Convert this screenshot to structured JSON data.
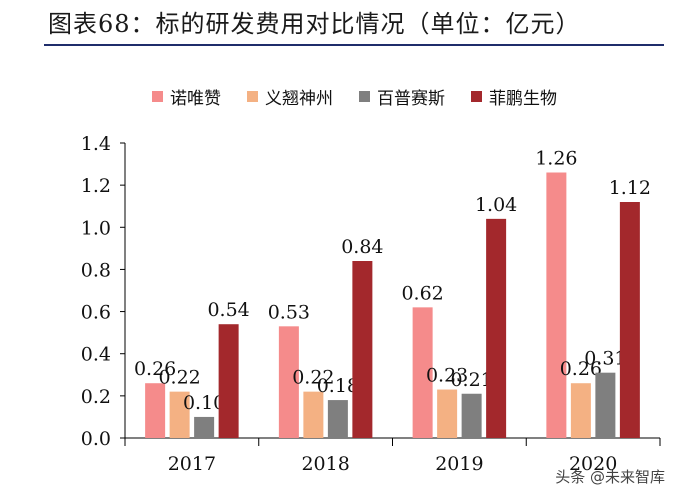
{
  "page": {
    "title": "图表68：标的研发费用对比情况（单位：亿元）",
    "watermark": "头条 @未来智库"
  },
  "chart_data": {
    "type": "bar",
    "title": "图表68：标的研发费用对比情况（单位：亿元）",
    "xlabel": "",
    "ylabel": "",
    "categories": [
      "2017",
      "2018",
      "2019",
      "2020"
    ],
    "ylim": [
      0,
      1.4
    ],
    "yticks": [
      "0.0",
      "0.2",
      "0.4",
      "0.6",
      "0.8",
      "1.0",
      "1.2",
      "1.4"
    ],
    "grid": false,
    "legend_position": "top",
    "series": [
      {
        "name": "诺唯赞",
        "color": "#f58b8b",
        "values": [
          0.26,
          0.53,
          0.62,
          1.26
        ],
        "labels": [
          "0.26",
          "0.53",
          "0.62",
          "1.26"
        ]
      },
      {
        "name": "义翘神州",
        "color": "#f4b183",
        "values": [
          0.22,
          0.22,
          0.23,
          0.26
        ],
        "labels": [
          "0.22",
          "0.22",
          "0.23",
          "0.26"
        ]
      },
      {
        "name": "百普赛斯",
        "color": "#7f7f7f",
        "values": [
          0.1,
          0.18,
          0.21,
          0.31
        ],
        "labels": [
          "0.10",
          "0.18",
          "0.21",
          "0.31"
        ]
      },
      {
        "name": "菲鹏生物",
        "color": "#a3282c",
        "values": [
          0.54,
          0.84,
          1.04,
          1.12
        ],
        "labels": [
          "0.54",
          "0.84",
          "1.04",
          "1.12"
        ]
      }
    ]
  }
}
